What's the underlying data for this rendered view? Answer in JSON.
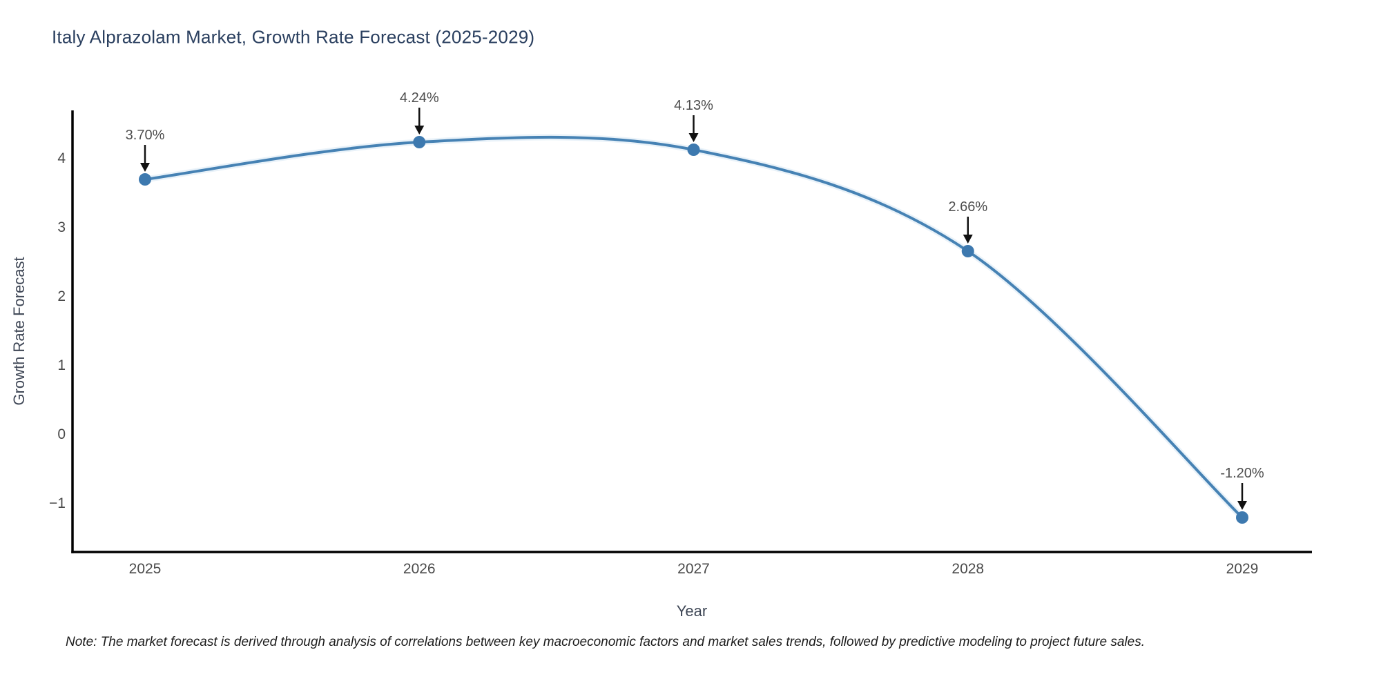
{
  "title": "Italy Alprazolam Market, Growth Rate Forecast (2025-2029)",
  "note": "Note: The market forecast is derived through analysis of correlations between key macroeconomic factors and market sales trends, followed by predictive modeling to project future sales.",
  "colors": {
    "line": "#4682b4",
    "line_halo": "#cfe2f2",
    "marker": "#3d79af",
    "axis": "#000000",
    "arrow": "#111111",
    "title_text": "#2a3f5f",
    "axis_title_text": "#3f4756",
    "tick_text": "#4a4a4a",
    "annotation_text": "#4d4d4d",
    "note_text": "#1c1c1c"
  },
  "chart_data": {
    "type": "line",
    "title": "Italy Alprazolam Market, Growth Rate Forecast (2025-2029)",
    "xlabel": "Year",
    "ylabel": "Growth Rate Forecast",
    "categories": [
      "2025",
      "2026",
      "2027",
      "2028",
      "2029"
    ],
    "values": [
      3.7,
      4.24,
      4.13,
      2.66,
      -1.2
    ],
    "point_labels": [
      "3.70%",
      "4.24%",
      "4.13%",
      "2.66%",
      "-1.20%"
    ],
    "ytick_values": [
      4,
      3,
      2,
      1,
      0,
      -1
    ],
    "ytick_labels": [
      "4",
      "3",
      "2",
      "1",
      "0",
      "−1"
    ],
    "ylim": [
      -1.7,
      4.7
    ],
    "grid": false,
    "legend": "none",
    "line_shape": "spline",
    "markers": true,
    "annotation_style": "value-label-with-down-arrow"
  }
}
